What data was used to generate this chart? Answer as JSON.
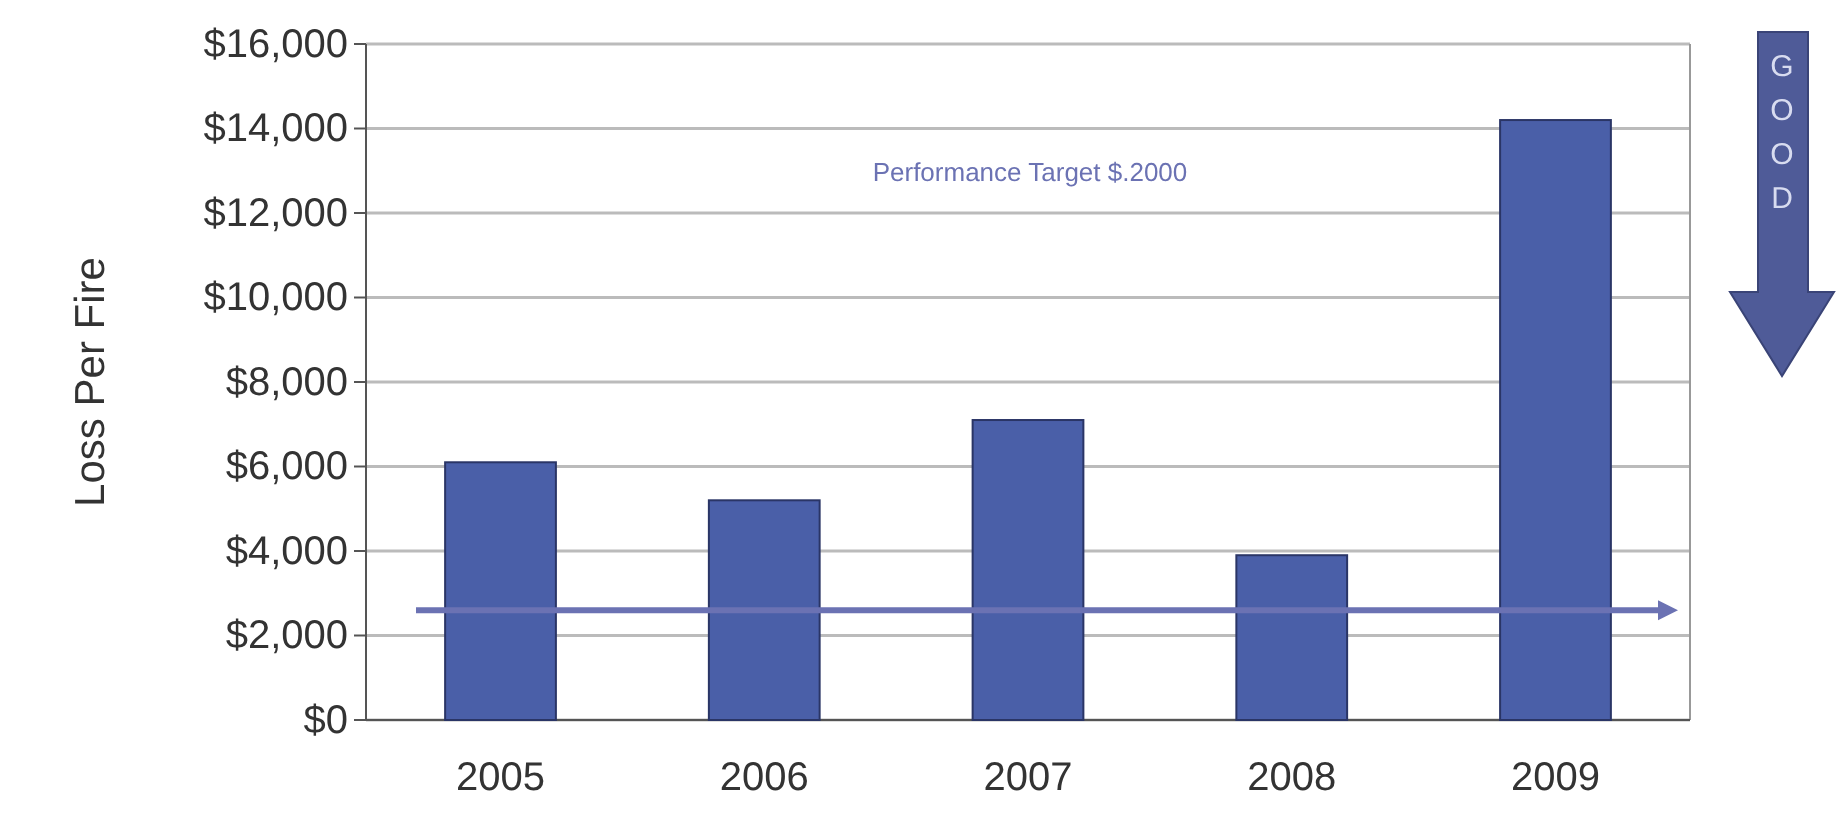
{
  "chart_data": {
    "type": "bar",
    "ylabel": "Loss Per Fire",
    "categories": [
      "2005",
      "2006",
      "2007",
      "2008",
      "2009"
    ],
    "values": [
      6100,
      5200,
      7100,
      3900,
      14200
    ],
    "color": "#4a5fa8",
    "ylim": [
      0,
      16000
    ],
    "yticks": [
      {
        "value": 0,
        "label": "$0"
      },
      {
        "value": 2000,
        "label": "$2,000"
      },
      {
        "value": 4000,
        "label": "$4,000"
      },
      {
        "value": 6000,
        "label": "$6,000"
      },
      {
        "value": 8000,
        "label": "$8,000"
      },
      {
        "value": 10000,
        "label": "$10,000"
      },
      {
        "value": 12000,
        "label": "$12,000"
      },
      {
        "value": 14000,
        "label": "$14,000"
      },
      {
        "value": 16000,
        "label": "$16,000"
      }
    ],
    "grid": "y",
    "ref_lines": [
      {
        "axis": "y",
        "value": 2600,
        "label": "Performance Target $.2000",
        "color": "#6b72b3"
      }
    ],
    "annotations": [
      "GOOD"
    ]
  }
}
